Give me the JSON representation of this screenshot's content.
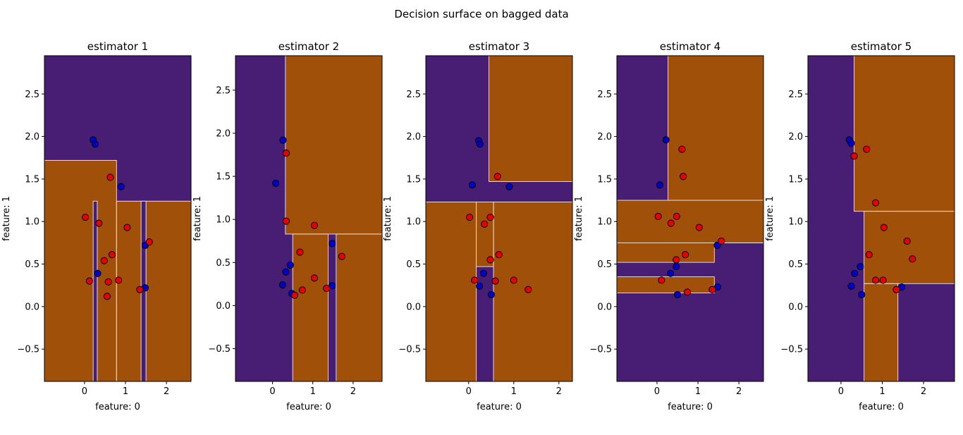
{
  "figure": {
    "title": "Decision surface on bagged data"
  },
  "colors": {
    "class0": "#481e75",
    "class1": "#a05008",
    "point0": "#0000cc",
    "point1": "#e80000",
    "boundary": "#ffffff"
  },
  "chart_data": [
    {
      "type": "scatter",
      "title": "estimator 1",
      "xlabel": "feature: 0",
      "ylabel": "feature: 1",
      "xlim": [
        -0.98,
        2.6
      ],
      "ylim": [
        -0.88,
        2.95
      ],
      "xticks": [
        0,
        1,
        2
      ],
      "yticks": [
        -0.5,
        0.0,
        0.5,
        1.0,
        1.5,
        2.0,
        2.5
      ],
      "regions": [
        {
          "cls": 1,
          "x0": -0.98,
          "x1": 0.78,
          "y0": -0.88,
          "y1": 1.72
        },
        {
          "cls": 1,
          "x0": 0.78,
          "x1": 2.6,
          "y0": -0.88,
          "y1": 1.24
        },
        {
          "cls": 0,
          "x0": 0.21,
          "x1": 0.31,
          "y0": -0.88,
          "y1": 1.24
        },
        {
          "cls": 0,
          "x0": 1.38,
          "x1": 1.5,
          "y0": -0.88,
          "y1": 1.24
        }
      ],
      "points": [
        {
          "x": 0.21,
          "y": 1.96,
          "c": 0
        },
        {
          "x": 0.26,
          "y": 1.91,
          "c": 0
        },
        {
          "x": 0.89,
          "y": 1.41,
          "c": 0
        },
        {
          "x": 1.48,
          "y": 0.72,
          "c": 0
        },
        {
          "x": 0.32,
          "y": 0.39,
          "c": 0
        },
        {
          "x": 1.48,
          "y": 0.22,
          "c": 0
        },
        {
          "x": 0.63,
          "y": 1.52,
          "c": 1
        },
        {
          "x": 0.02,
          "y": 1.05,
          "c": 1
        },
        {
          "x": 0.35,
          "y": 0.98,
          "c": 1
        },
        {
          "x": 1.04,
          "y": 0.93,
          "c": 1
        },
        {
          "x": 1.58,
          "y": 0.76,
          "c": 1
        },
        {
          "x": 0.67,
          "y": 0.61,
          "c": 1
        },
        {
          "x": 0.48,
          "y": 0.54,
          "c": 1
        },
        {
          "x": 0.12,
          "y": 0.3,
          "c": 1
        },
        {
          "x": 0.58,
          "y": 0.29,
          "c": 1
        },
        {
          "x": 0.83,
          "y": 0.31,
          "c": 1
        },
        {
          "x": 1.35,
          "y": 0.2,
          "c": 1
        },
        {
          "x": 0.55,
          "y": 0.12,
          "c": 1
        }
      ]
    },
    {
      "type": "scatter",
      "title": "estimator 2",
      "xlabel": "feature: 0",
      "ylabel": "feature: 1",
      "xlim": [
        -0.92,
        2.72
      ],
      "ylim": [
        -0.88,
        2.9
      ],
      "xticks": [
        0,
        1,
        2
      ],
      "yticks": [
        -0.5,
        0.0,
        0.5,
        1.0,
        1.5,
        2.0,
        2.5
      ],
      "regions": [
        {
          "cls": 1,
          "x0": 0.32,
          "x1": 2.72,
          "y0": 0.83,
          "y1": 2.9
        },
        {
          "cls": 1,
          "x0": 0.5,
          "x1": 1.38,
          "y0": -0.88,
          "y1": 0.83
        },
        {
          "cls": 1,
          "x0": 1.58,
          "x1": 2.72,
          "y0": -0.88,
          "y1": 0.83
        }
      ],
      "points": [
        {
          "x": 0.26,
          "y": 1.92,
          "c": 0
        },
        {
          "x": 0.08,
          "y": 1.42,
          "c": 0
        },
        {
          "x": 1.48,
          "y": 0.72,
          "c": 0
        },
        {
          "x": 0.44,
          "y": 0.47,
          "c": 0
        },
        {
          "x": 0.33,
          "y": 0.39,
          "c": 0
        },
        {
          "x": 0.25,
          "y": 0.24,
          "c": 0
        },
        {
          "x": 1.48,
          "y": 0.23,
          "c": 0
        },
        {
          "x": 0.48,
          "y": 0.14,
          "c": 0
        },
        {
          "x": 0.34,
          "y": 1.77,
          "c": 1
        },
        {
          "x": 0.34,
          "y": 0.98,
          "c": 1
        },
        {
          "x": 1.04,
          "y": 0.93,
          "c": 1
        },
        {
          "x": 0.68,
          "y": 0.62,
          "c": 1
        },
        {
          "x": 1.72,
          "y": 0.57,
          "c": 1
        },
        {
          "x": 1.04,
          "y": 0.32,
          "c": 1
        },
        {
          "x": 1.34,
          "y": 0.2,
          "c": 1
        },
        {
          "x": 0.74,
          "y": 0.18,
          "c": 1
        },
        {
          "x": 0.55,
          "y": 0.12,
          "c": 1
        }
      ]
    },
    {
      "type": "scatter",
      "title": "estimator 3",
      "xlabel": "feature: 0",
      "ylabel": "feature: 1",
      "xlim": [
        -0.95,
        2.3
      ],
      "ylim": [
        -0.88,
        2.95
      ],
      "xticks": [
        0,
        1,
        2
      ],
      "yticks": [
        -0.5,
        0.0,
        0.5,
        1.0,
        1.5,
        2.0,
        2.5
      ],
      "regions": [
        {
          "cls": 1,
          "x0": 0.45,
          "x1": 2.3,
          "y0": 1.47,
          "y1": 2.95
        },
        {
          "cls": 1,
          "x0": -0.95,
          "x1": 0.17,
          "y0": -0.88,
          "y1": 1.23
        },
        {
          "cls": 1,
          "x0": 0.55,
          "x1": 2.3,
          "y0": -0.88,
          "y1": 1.23
        },
        {
          "cls": 1,
          "x0": 0.17,
          "x1": 0.55,
          "y0": 0.47,
          "y1": 1.23
        }
      ],
      "points": [
        {
          "x": 0.22,
          "y": 1.95,
          "c": 0
        },
        {
          "x": 0.25,
          "y": 1.91,
          "c": 0
        },
        {
          "x": 0.08,
          "y": 1.43,
          "c": 0
        },
        {
          "x": 0.9,
          "y": 1.41,
          "c": 0
        },
        {
          "x": 0.33,
          "y": 0.39,
          "c": 0
        },
        {
          "x": 0.24,
          "y": 0.24,
          "c": 0
        },
        {
          "x": 0.5,
          "y": 0.14,
          "c": 0
        },
        {
          "x": 0.64,
          "y": 1.53,
          "c": 1
        },
        {
          "x": 0.02,
          "y": 1.05,
          "c": 1
        },
        {
          "x": 0.48,
          "y": 1.05,
          "c": 1
        },
        {
          "x": 0.35,
          "y": 0.97,
          "c": 1
        },
        {
          "x": 0.67,
          "y": 0.61,
          "c": 1
        },
        {
          "x": 0.48,
          "y": 0.55,
          "c": 1
        },
        {
          "x": 0.13,
          "y": 0.31,
          "c": 1
        },
        {
          "x": 0.59,
          "y": 0.3,
          "c": 1
        },
        {
          "x": 1.0,
          "y": 0.31,
          "c": 1
        },
        {
          "x": 1.32,
          "y": 0.2,
          "c": 1
        }
      ]
    },
    {
      "type": "scatter",
      "title": "estimator 4",
      "xlabel": "feature: 0",
      "ylabel": "feature: 1",
      "xlim": [
        -0.98,
        2.6
      ],
      "ylim": [
        -0.88,
        2.95
      ],
      "xticks": [
        0,
        1,
        2
      ],
      "yticks": [
        -0.5,
        0.0,
        0.5,
        1.0,
        1.5,
        2.0,
        2.5
      ],
      "regions": [
        {
          "cls": 1,
          "x0": 0.27,
          "x1": 2.6,
          "y0": 0.75,
          "y1": 2.95
        },
        {
          "cls": 1,
          "x0": -0.98,
          "x1": 2.6,
          "y0": 0.75,
          "y1": 1.25
        },
        {
          "cls": 1,
          "x0": -0.98,
          "x1": 1.4,
          "y0": 0.52,
          "y1": 0.75
        },
        {
          "cls": 1,
          "x0": -0.98,
          "x1": 1.4,
          "y0": 0.16,
          "y1": 0.35
        }
      ],
      "points": [
        {
          "x": 0.22,
          "y": 1.96,
          "c": 0
        },
        {
          "x": 0.07,
          "y": 1.43,
          "c": 0
        },
        {
          "x": 1.47,
          "y": 0.72,
          "c": 0
        },
        {
          "x": 0.47,
          "y": 0.47,
          "c": 0
        },
        {
          "x": 0.33,
          "y": 0.39,
          "c": 0
        },
        {
          "x": 1.48,
          "y": 0.23,
          "c": 0
        },
        {
          "x": 0.5,
          "y": 0.14,
          "c": 0
        },
        {
          "x": 0.61,
          "y": 1.85,
          "c": 1
        },
        {
          "x": 0.64,
          "y": 1.53,
          "c": 1
        },
        {
          "x": 0.03,
          "y": 1.06,
          "c": 1
        },
        {
          "x": 0.48,
          "y": 1.06,
          "c": 1
        },
        {
          "x": 0.34,
          "y": 0.98,
          "c": 1
        },
        {
          "x": 1.03,
          "y": 0.93,
          "c": 1
        },
        {
          "x": 1.57,
          "y": 0.77,
          "c": 1
        },
        {
          "x": 0.69,
          "y": 0.61,
          "c": 1
        },
        {
          "x": 0.47,
          "y": 0.55,
          "c": 1
        },
        {
          "x": 0.11,
          "y": 0.31,
          "c": 1
        },
        {
          "x": 0.74,
          "y": 0.17,
          "c": 1
        },
        {
          "x": 1.35,
          "y": 0.2,
          "c": 1
        }
      ]
    },
    {
      "type": "scatter",
      "title": "estimator 5",
      "xlabel": "feature: 0",
      "ylabel": "feature: 1",
      "xlim": [
        -0.8,
        2.75
      ],
      "ylim": [
        -0.88,
        2.95
      ],
      "xticks": [
        0,
        1,
        2
      ],
      "yticks": [
        -0.5,
        0.0,
        0.5,
        1.0,
        1.5,
        2.0,
        2.5
      ],
      "regions": [
        {
          "cls": 1,
          "x0": 0.32,
          "x1": 2.75,
          "y0": 1.12,
          "y1": 2.95
        },
        {
          "cls": 1,
          "x0": 0.56,
          "x1": 2.75,
          "y0": 0.27,
          "y1": 1.12
        },
        {
          "cls": 1,
          "x0": 0.56,
          "x1": 1.38,
          "y0": -0.88,
          "y1": 0.27
        }
      ],
      "points": [
        {
          "x": 0.2,
          "y": 1.96,
          "c": 0
        },
        {
          "x": 0.25,
          "y": 1.92,
          "c": 0
        },
        {
          "x": 0.47,
          "y": 0.47,
          "c": 0
        },
        {
          "x": 0.33,
          "y": 0.39,
          "c": 0
        },
        {
          "x": 0.25,
          "y": 0.24,
          "c": 0
        },
        {
          "x": 1.47,
          "y": 0.23,
          "c": 0
        },
        {
          "x": 0.5,
          "y": 0.14,
          "c": 0
        },
        {
          "x": 0.32,
          "y": 1.77,
          "c": 1
        },
        {
          "x": 0.62,
          "y": 1.85,
          "c": 1
        },
        {
          "x": 0.84,
          "y": 1.22,
          "c": 1
        },
        {
          "x": 1.04,
          "y": 0.93,
          "c": 1
        },
        {
          "x": 1.6,
          "y": 0.77,
          "c": 1
        },
        {
          "x": 0.68,
          "y": 0.61,
          "c": 1
        },
        {
          "x": 1.73,
          "y": 0.56,
          "c": 1
        },
        {
          "x": 0.84,
          "y": 0.31,
          "c": 1
        },
        {
          "x": 1.02,
          "y": 0.31,
          "c": 1
        },
        {
          "x": 1.34,
          "y": 0.2,
          "c": 1
        }
      ]
    }
  ]
}
